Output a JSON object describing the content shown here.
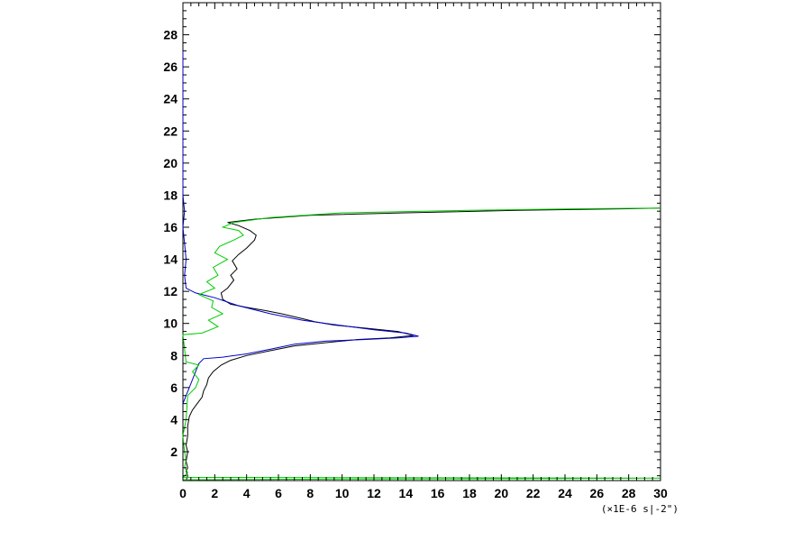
{
  "chart_data": {
    "type": "line",
    "title": "",
    "xlabel": "",
    "ylabel": "",
    "x_unit_label": "(×1E-6 s|-2\")",
    "xlim": [
      0,
      30
    ],
    "ylim": [
      0.2,
      30
    ],
    "x_ticks": [
      0,
      2,
      4,
      6,
      8,
      10,
      12,
      14,
      16,
      18,
      20,
      22,
      24,
      26,
      28,
      30
    ],
    "y_ticks": [
      2,
      4,
      6,
      8,
      10,
      12,
      14,
      16,
      18,
      20,
      22,
      24,
      26,
      28
    ],
    "grid": false,
    "legend": "none",
    "series": [
      {
        "color": "#000000",
        "points": [
          [
            0.2,
            0.2
          ],
          [
            0.3,
            0.5
          ],
          [
            0.2,
            0.8
          ],
          [
            0.3,
            1.0
          ],
          [
            0.2,
            1.4
          ],
          [
            0.3,
            2.0
          ],
          [
            0.2,
            2.4
          ],
          [
            0.3,
            3.0
          ],
          [
            0.3,
            3.6
          ],
          [
            0.4,
            4.2
          ],
          [
            0.6,
            4.6
          ],
          [
            0.9,
            5.0
          ],
          [
            1.2,
            5.4
          ],
          [
            1.3,
            5.8
          ],
          [
            1.5,
            6.2
          ],
          [
            1.6,
            6.6
          ],
          [
            1.9,
            7.0
          ],
          [
            2.4,
            7.4
          ],
          [
            3.0,
            7.7
          ],
          [
            4.0,
            8.0
          ],
          [
            5.5,
            8.3
          ],
          [
            7.0,
            8.6
          ],
          [
            9.0,
            8.8
          ],
          [
            11.0,
            9.0
          ],
          [
            13.0,
            9.1
          ],
          [
            14.5,
            9.25
          ],
          [
            13.5,
            9.5
          ],
          [
            11.5,
            9.7
          ],
          [
            9.5,
            9.9
          ],
          [
            8.3,
            10.1
          ],
          [
            7.5,
            10.3
          ],
          [
            6.2,
            10.6
          ],
          [
            5.2,
            10.8
          ],
          [
            4.0,
            11.0
          ],
          [
            3.0,
            11.2
          ],
          [
            2.5,
            11.5
          ],
          [
            2.4,
            11.9
          ],
          [
            2.8,
            12.2
          ],
          [
            3.2,
            12.7
          ],
          [
            3.0,
            13.0
          ],
          [
            3.4,
            13.4
          ],
          [
            3.1,
            13.9
          ],
          [
            3.5,
            14.3
          ],
          [
            4.0,
            14.7
          ],
          [
            4.5,
            15.2
          ],
          [
            4.6,
            15.5
          ],
          [
            4.2,
            15.8
          ],
          [
            3.5,
            16.1
          ],
          [
            2.8,
            16.3
          ],
          [
            4.5,
            16.5
          ],
          [
            8.0,
            16.75
          ],
          [
            14.0,
            16.9
          ],
          [
            21.0,
            17.05
          ],
          [
            28.0,
            17.15
          ],
          [
            30.0,
            17.2
          ]
        ]
      },
      {
        "color": "#0000cc",
        "points": [
          [
            0.0,
            5.0
          ],
          [
            0.2,
            5.5
          ],
          [
            0.4,
            6.0
          ],
          [
            0.6,
            6.5
          ],
          [
            0.8,
            7.0
          ],
          [
            1.0,
            7.5
          ],
          [
            1.3,
            7.8
          ],
          [
            2.5,
            7.9
          ],
          [
            4.0,
            8.1
          ],
          [
            5.5,
            8.4
          ],
          [
            7.0,
            8.7
          ],
          [
            9.0,
            8.9
          ],
          [
            11.5,
            9.0
          ],
          [
            13.5,
            9.1
          ],
          [
            14.8,
            9.2
          ],
          [
            14.0,
            9.4
          ],
          [
            12.0,
            9.6
          ],
          [
            10.5,
            9.8
          ],
          [
            9.0,
            10.0
          ],
          [
            7.5,
            10.2
          ],
          [
            5.5,
            10.6
          ],
          [
            3.5,
            11.1
          ],
          [
            2.0,
            11.6
          ],
          [
            0.8,
            11.9
          ],
          [
            0.2,
            12.2
          ],
          [
            0.1,
            13.0
          ],
          [
            0.2,
            14.0
          ],
          [
            0.1,
            15.0
          ],
          [
            0.0,
            16.0
          ],
          [
            0.1,
            17.0
          ],
          [
            0.0,
            18.0
          ],
          [
            0.0,
            27.0
          ]
        ]
      },
      {
        "color": "#00cc00",
        "points": [
          [
            0.0,
            0.25
          ],
          [
            10.0,
            0.3
          ],
          [
            20.0,
            0.32
          ],
          [
            30.0,
            0.35
          ],
          [
            0.0,
            0.4
          ],
          [
            0.3,
            0.7
          ],
          [
            0.1,
            1.0
          ],
          [
            0.2,
            1.5
          ],
          [
            0.1,
            2.0
          ],
          [
            0.0,
            3.0
          ],
          [
            0.2,
            4.0
          ],
          [
            0.3,
            5.5
          ],
          [
            0.8,
            6.0
          ],
          [
            1.0,
            6.5
          ],
          [
            0.6,
            7.0
          ],
          [
            1.0,
            7.4
          ],
          [
            0.2,
            7.6
          ],
          [
            0.0,
            9.3
          ],
          [
            1.2,
            9.4
          ],
          [
            2.2,
            9.8
          ],
          [
            1.6,
            10.2
          ],
          [
            2.5,
            10.6
          ],
          [
            1.8,
            11.0
          ],
          [
            1.9,
            11.4
          ],
          [
            1.0,
            11.8
          ],
          [
            2.0,
            12.2
          ],
          [
            1.5,
            12.6
          ],
          [
            2.2,
            13.0
          ],
          [
            1.9,
            13.5
          ],
          [
            2.8,
            14.0
          ],
          [
            2.0,
            14.4
          ],
          [
            2.3,
            14.8
          ],
          [
            3.2,
            15.2
          ],
          [
            3.8,
            15.5
          ],
          [
            3.5,
            15.8
          ],
          [
            2.5,
            16.0
          ],
          [
            3.2,
            16.3
          ],
          [
            5.5,
            16.6
          ],
          [
            10.0,
            16.9
          ],
          [
            18.0,
            17.05
          ],
          [
            25.0,
            17.15
          ],
          [
            30.0,
            17.2
          ]
        ]
      }
    ]
  }
}
